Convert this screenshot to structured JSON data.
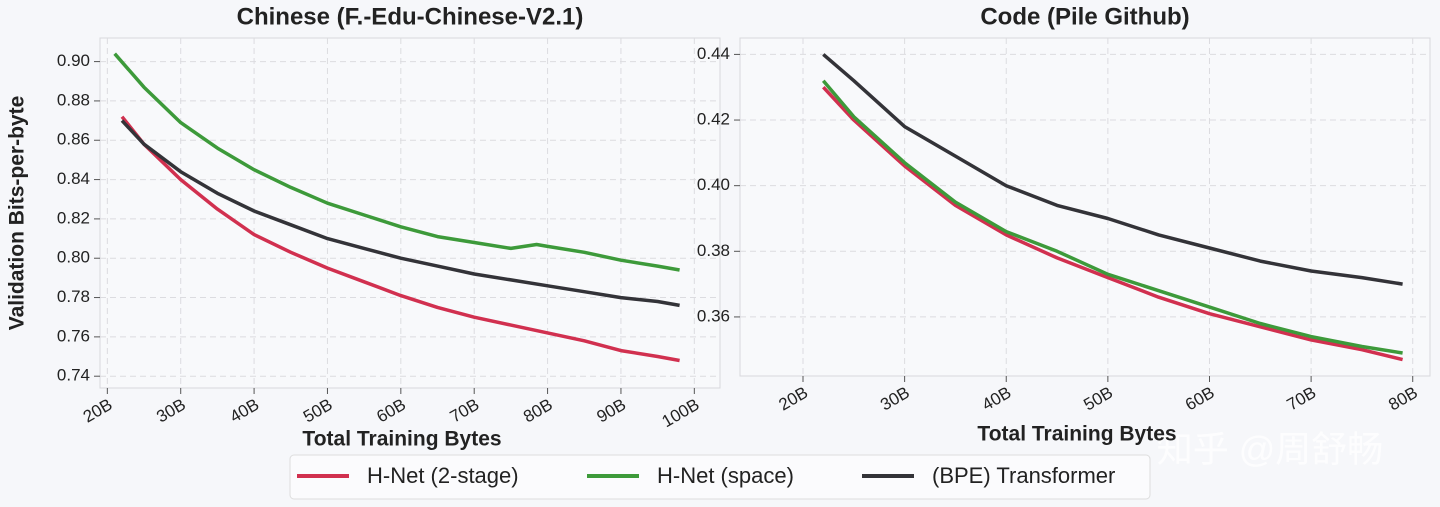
{
  "chart_data": [
    {
      "type": "line",
      "title": "Chinese (F.-Edu-Chinese-V2.1)",
      "x_label": "Total Training Bytes",
      "y_label": "Validation Bits-per-byte",
      "xlim": [
        19.0,
        103.5
      ],
      "ylim": [
        0.734,
        0.912
      ],
      "grid": true,
      "xticks": [
        {
          "value": 20,
          "label": "20B"
        },
        {
          "value": 30,
          "label": "30B"
        },
        {
          "value": 40,
          "label": "40B"
        },
        {
          "value": 50,
          "label": "50B"
        },
        {
          "value": 60,
          "label": "60B"
        },
        {
          "value": 70,
          "label": "70B"
        },
        {
          "value": 80,
          "label": "80B"
        },
        {
          "value": 90,
          "label": "90B"
        },
        {
          "value": 100,
          "label": "100B"
        }
      ],
      "yticks": [
        0.74,
        0.76,
        0.78,
        {
          "value": 0.8,
          "label": "0.80"
        },
        0.82,
        0.84,
        0.86,
        0.88,
        {
          "value": 0.9,
          "label": "0.90"
        }
      ],
      "series": [
        {
          "name": "H-Net (2-stage)",
          "color": "#d1304f",
          "x": [
            22,
            25,
            30,
            35,
            40,
            45,
            50,
            55,
            60,
            65,
            70,
            75,
            80,
            85,
            90,
            95,
            98
          ],
          "values": [
            0.872,
            0.858,
            0.84,
            0.825,
            0.812,
            0.803,
            0.795,
            0.788,
            0.781,
            0.775,
            0.77,
            0.766,
            0.762,
            0.758,
            0.753,
            0.75,
            0.748
          ]
        },
        {
          "name": "H-Net (space)",
          "color": "#3d9a3a",
          "x": [
            21,
            25,
            30,
            35,
            40,
            45,
            50,
            55,
            60,
            65,
            70,
            75,
            78.5,
            80,
            85,
            90,
            95,
            98
          ],
          "values": [
            0.904,
            0.887,
            0.869,
            0.856,
            0.845,
            0.836,
            0.828,
            0.822,
            0.816,
            0.811,
            0.808,
            0.805,
            0.807,
            0.806,
            0.803,
            0.799,
            0.796,
            0.794
          ]
        },
        {
          "name": "(BPE) Transformer",
          "color": "#333338",
          "x": [
            22,
            25,
            30,
            35,
            40,
            45,
            50,
            55,
            60,
            65,
            70,
            75,
            80,
            85,
            90,
            95,
            98
          ],
          "values": [
            0.87,
            0.858,
            0.844,
            0.833,
            0.824,
            0.817,
            0.81,
            0.805,
            0.8,
            0.796,
            0.792,
            0.789,
            0.786,
            0.783,
            0.78,
            0.778,
            0.776
          ]
        }
      ]
    },
    {
      "type": "line",
      "title": "Code (Pile Github)",
      "x_label": "Total Training Bytes",
      "xlim": [
        13.8,
        81.7
      ],
      "ylim": [
        0.342,
        0.445
      ],
      "grid": true,
      "xticks": [
        {
          "value": 20,
          "label": "20B"
        },
        {
          "value": 30,
          "label": "30B"
        },
        {
          "value": 40,
          "label": "40B"
        },
        {
          "value": 50,
          "label": "50B"
        },
        {
          "value": 60,
          "label": "60B"
        },
        {
          "value": 70,
          "label": "70B"
        },
        {
          "value": 80,
          "label": "80B"
        }
      ],
      "yticks": [
        0.36,
        0.38,
        {
          "value": 0.4,
          "label": "0.40"
        },
        0.42,
        0.44
      ],
      "series": [
        {
          "color": "#d1304f",
          "x": [
            22,
            25,
            30,
            35,
            40,
            45,
            50,
            55,
            60,
            65,
            70,
            75,
            79
          ],
          "values": [
            0.43,
            0.42,
            0.406,
            0.394,
            0.385,
            0.378,
            0.372,
            0.366,
            0.361,
            0.357,
            0.353,
            0.35,
            0.347
          ]
        },
        {
          "color": "#3d9a3a",
          "x": [
            22,
            25,
            30,
            35,
            40,
            45,
            50,
            55,
            60,
            65,
            70,
            75,
            79
          ],
          "values": [
            0.432,
            0.421,
            0.407,
            0.395,
            0.386,
            0.38,
            0.373,
            0.368,
            0.363,
            0.358,
            0.354,
            0.351,
            0.349
          ]
        },
        {
          "color": "#333338",
          "x": [
            22,
            25,
            30,
            35,
            40,
            45,
            50,
            55,
            60,
            65,
            70,
            75,
            79
          ],
          "values": [
            0.44,
            0.432,
            0.418,
            0.409,
            0.4,
            0.394,
            0.39,
            0.385,
            0.381,
            0.377,
            0.374,
            0.372,
            0.37
          ]
        }
      ]
    }
  ],
  "watermark": "知乎 @周舒畅"
}
